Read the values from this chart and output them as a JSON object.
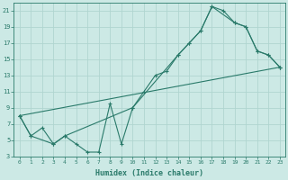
{
  "xlabel": "Humidex (Indice chaleur)",
  "bg_color": "#cce9e5",
  "grid_color": "#b0d5d0",
  "line_color": "#2a7a6a",
  "xlim": [
    -0.5,
    23.5
  ],
  "ylim": [
    3,
    22
  ],
  "xticks": [
    0,
    1,
    2,
    3,
    4,
    5,
    6,
    7,
    8,
    9,
    10,
    11,
    12,
    13,
    14,
    15,
    16,
    17,
    18,
    19,
    20,
    21,
    22,
    23
  ],
  "yticks": [
    3,
    5,
    7,
    9,
    11,
    13,
    15,
    17,
    19,
    21
  ],
  "line1_x": [
    0,
    1,
    2,
    3,
    4,
    5,
    6,
    7,
    8,
    9,
    10,
    11,
    12,
    13,
    14,
    15,
    16,
    17,
    18,
    19,
    20,
    21,
    22,
    23
  ],
  "line1_y": [
    8,
    5.5,
    6.5,
    4.5,
    5.5,
    4.5,
    3.5,
    3.5,
    9.5,
    4.5,
    9,
    11,
    13,
    13.5,
    15.5,
    17,
    18.5,
    21.5,
    21,
    19.5,
    19,
    16,
    15.5,
    14
  ],
  "line2_x": [
    0,
    1,
    3,
    4,
    10,
    14,
    15,
    16,
    17,
    19,
    20,
    21,
    22,
    23
  ],
  "line2_y": [
    8,
    5.5,
    4.5,
    5.5,
    9,
    15.5,
    17,
    18.5,
    21.5,
    19.5,
    19,
    16,
    15.5,
    14
  ],
  "line3_x": [
    0,
    23
  ],
  "line3_y": [
    8,
    14
  ]
}
